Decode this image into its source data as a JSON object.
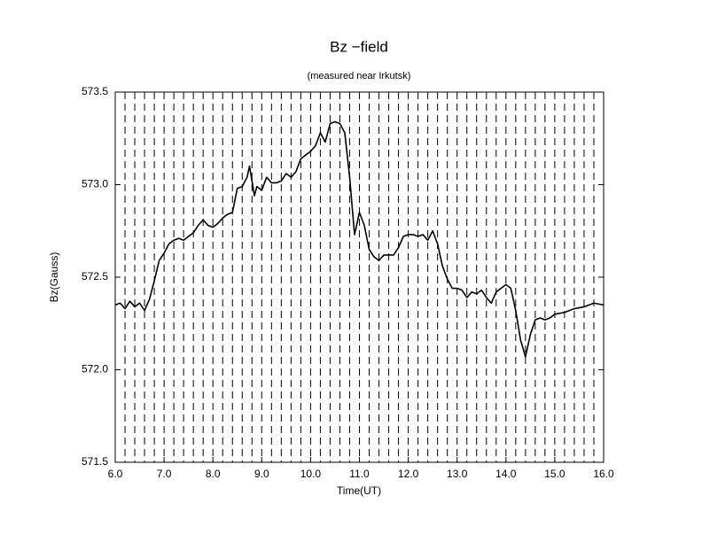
{
  "chart_data": {
    "type": "line",
    "title": "Bz −field",
    "subtitle": "(measured near Irkutsk)",
    "x_label": "Time(UT)",
    "y_label": "Bz(Gauss)",
    "color": "#000000",
    "xlim": [
      6,
      16
    ],
    "ylim": [
      571.5,
      573.5
    ],
    "xticks": [
      {
        "value": 6,
        "label": "6.0"
      },
      {
        "value": 7,
        "label": "7.0"
      },
      {
        "value": 8,
        "label": "8.0"
      },
      {
        "value": 9,
        "label": "9.0"
      },
      {
        "value": 10,
        "label": "10.0"
      },
      {
        "value": 11,
        "label": "11.0"
      },
      {
        "value": 12,
        "label": "12.0"
      },
      {
        "value": 13,
        "label": "13.0"
      },
      {
        "value": 14,
        "label": "14.0"
      },
      {
        "value": 15,
        "label": "15.0"
      },
      {
        "value": 16,
        "label": "16.0"
      }
    ],
    "yticks": [
      571.5,
      {
        "value": 572,
        "label": "572.0"
      },
      572.5,
      {
        "value": 573,
        "label": "573.0"
      },
      573.5
    ],
    "xgrid": [
      6.2,
      6.4,
      6.6,
      6.8,
      7.0,
      7.2,
      7.4,
      7.6,
      7.8,
      8.0,
      8.2,
      8.4,
      8.6,
      8.8,
      9.0,
      9.2,
      9.4,
      9.6,
      9.8,
      10.0,
      10.2,
      10.4,
      10.6,
      10.8,
      11.0,
      11.2,
      11.4,
      11.6,
      11.8,
      12.0,
      12.2,
      12.4,
      12.6,
      12.8,
      13.0,
      13.2,
      13.4,
      13.6,
      13.8,
      14.0,
      14.2,
      14.4,
      14.6,
      14.8,
      15.0,
      15.2,
      15.4,
      15.6,
      15.8
    ],
    "grid": true,
    "x": [
      6.0,
      6.1,
      6.2,
      6.3,
      6.4,
      6.5,
      6.6,
      6.7,
      6.8,
      6.9,
      7.0,
      7.1,
      7.2,
      7.3,
      7.4,
      7.5,
      7.6,
      7.7,
      7.8,
      7.9,
      8.0,
      8.1,
      8.2,
      8.3,
      8.4,
      8.5,
      8.6,
      8.7,
      8.75,
      8.8,
      8.85,
      8.9,
      9.0,
      9.1,
      9.2,
      9.3,
      9.4,
      9.5,
      9.6,
      9.7,
      9.8,
      9.9,
      10.0,
      10.1,
      10.2,
      10.3,
      10.4,
      10.5,
      10.6,
      10.7,
      10.8,
      10.9,
      11.0,
      11.1,
      11.2,
      11.3,
      11.4,
      11.5,
      11.6,
      11.7,
      11.8,
      11.9,
      12.0,
      12.1,
      12.2,
      12.3,
      12.4,
      12.5,
      12.6,
      12.7,
      12.8,
      12.9,
      13.0,
      13.1,
      13.2,
      13.3,
      13.4,
      13.5,
      13.6,
      13.7,
      13.8,
      13.9,
      14.0,
      14.1,
      14.2,
      14.3,
      14.4,
      14.5,
      14.6,
      14.7,
      14.8,
      14.9,
      15.0,
      15.2,
      15.4,
      15.6,
      15.8,
      16.0
    ],
    "values": [
      572.35,
      572.36,
      572.33,
      572.37,
      572.34,
      572.36,
      572.32,
      572.38,
      572.48,
      572.59,
      572.63,
      572.68,
      572.7,
      572.71,
      572.7,
      572.72,
      572.74,
      572.78,
      572.81,
      572.78,
      572.77,
      572.79,
      572.82,
      572.84,
      572.85,
      572.98,
      572.99,
      573.04,
      573.1,
      573.02,
      572.94,
      572.99,
      572.97,
      573.04,
      573.01,
      573.01,
      573.02,
      573.06,
      573.04,
      573.07,
      573.14,
      573.16,
      573.18,
      573.21,
      573.28,
      573.23,
      573.33,
      573.34,
      573.33,
      573.28,
      573.04,
      572.73,
      572.85,
      572.78,
      572.65,
      572.61,
      572.59,
      572.62,
      572.62,
      572.62,
      572.66,
      572.72,
      572.73,
      572.73,
      572.72,
      572.73,
      572.7,
      572.75,
      572.68,
      572.56,
      572.49,
      572.44,
      572.44,
      572.43,
      572.39,
      572.42,
      572.41,
      572.43,
      572.39,
      572.36,
      572.42,
      572.44,
      572.46,
      572.44,
      572.32,
      572.16,
      572.07,
      572.19,
      572.27,
      572.28,
      572.27,
      572.28,
      572.3,
      572.31,
      572.33,
      572.34,
      572.36,
      572.35
    ]
  }
}
